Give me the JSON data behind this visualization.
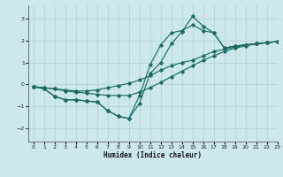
{
  "xlabel": "Humidex (Indice chaleur)",
  "bg_color": "#cde8eb",
  "grid_color": "#b8d8db",
  "line_color": "#1e6b65",
  "xlim": [
    -0.5,
    23
  ],
  "ylim": [
    -2.6,
    3.6
  ],
  "yticks": [
    -2,
    -1,
    0,
    1,
    2,
    3
  ],
  "xticks": [
    0,
    1,
    2,
    3,
    4,
    5,
    6,
    7,
    8,
    9,
    10,
    11,
    12,
    13,
    14,
    15,
    16,
    17,
    18,
    19,
    20,
    21,
    22,
    23
  ],
  "series": [
    {
      "x": [
        0,
        1,
        2,
        3,
        4,
        5,
        6,
        7,
        8,
        9,
        10,
        11,
        12,
        13,
        14,
        15,
        16,
        17,
        18,
        19,
        20,
        21,
        22,
        23
      ],
      "y": [
        -0.1,
        -0.15,
        -0.2,
        -0.25,
        -0.3,
        -0.3,
        -0.25,
        -0.15,
        -0.05,
        0.05,
        0.2,
        0.4,
        0.65,
        0.85,
        1.0,
        1.1,
        1.3,
        1.5,
        1.6,
        1.7,
        1.8,
        1.85,
        1.9,
        1.95
      ]
    },
    {
      "x": [
        0,
        1,
        2,
        3,
        4,
        5,
        6,
        7,
        8,
        9,
        10,
        11,
        12,
        13,
        14,
        15,
        16,
        17,
        18,
        19,
        20,
        21,
        22,
        23
      ],
      "y": [
        -0.1,
        -0.15,
        -0.2,
        -0.3,
        -0.35,
        -0.4,
        -0.45,
        -0.5,
        -0.5,
        -0.5,
        -0.35,
        -0.15,
        0.1,
        0.35,
        0.6,
        0.85,
        1.1,
        1.3,
        1.5,
        1.65,
        1.75,
        1.85,
        1.9,
        1.95
      ]
    },
    {
      "x": [
        0,
        1,
        2,
        3,
        4,
        5,
        6,
        7,
        8,
        9,
        10,
        11,
        12,
        13,
        14,
        15,
        16,
        17,
        18,
        19,
        20,
        21,
        22,
        23
      ],
      "y": [
        -0.1,
        -0.2,
        -0.55,
        -0.7,
        -0.7,
        -0.75,
        -0.8,
        -1.2,
        -1.45,
        -1.55,
        -0.85,
        0.5,
        1.0,
        1.85,
        2.4,
        3.1,
        2.65,
        2.35,
        1.65,
        1.75,
        1.8,
        1.85,
        1.9,
        1.95
      ]
    },
    {
      "x": [
        0,
        1,
        2,
        3,
        4,
        5,
        6,
        7,
        8,
        9,
        10,
        11,
        12,
        13,
        14,
        15,
        16,
        17,
        18,
        19,
        20,
        21,
        22,
        23
      ],
      "y": [
        -0.1,
        -0.2,
        -0.55,
        -0.7,
        -0.7,
        -0.75,
        -0.8,
        -1.2,
        -1.45,
        -1.55,
        -0.5,
        0.9,
        1.8,
        2.35,
        2.45,
        2.7,
        2.45,
        2.35,
        1.65,
        1.75,
        1.8,
        1.85,
        1.9,
        1.95
      ]
    }
  ]
}
